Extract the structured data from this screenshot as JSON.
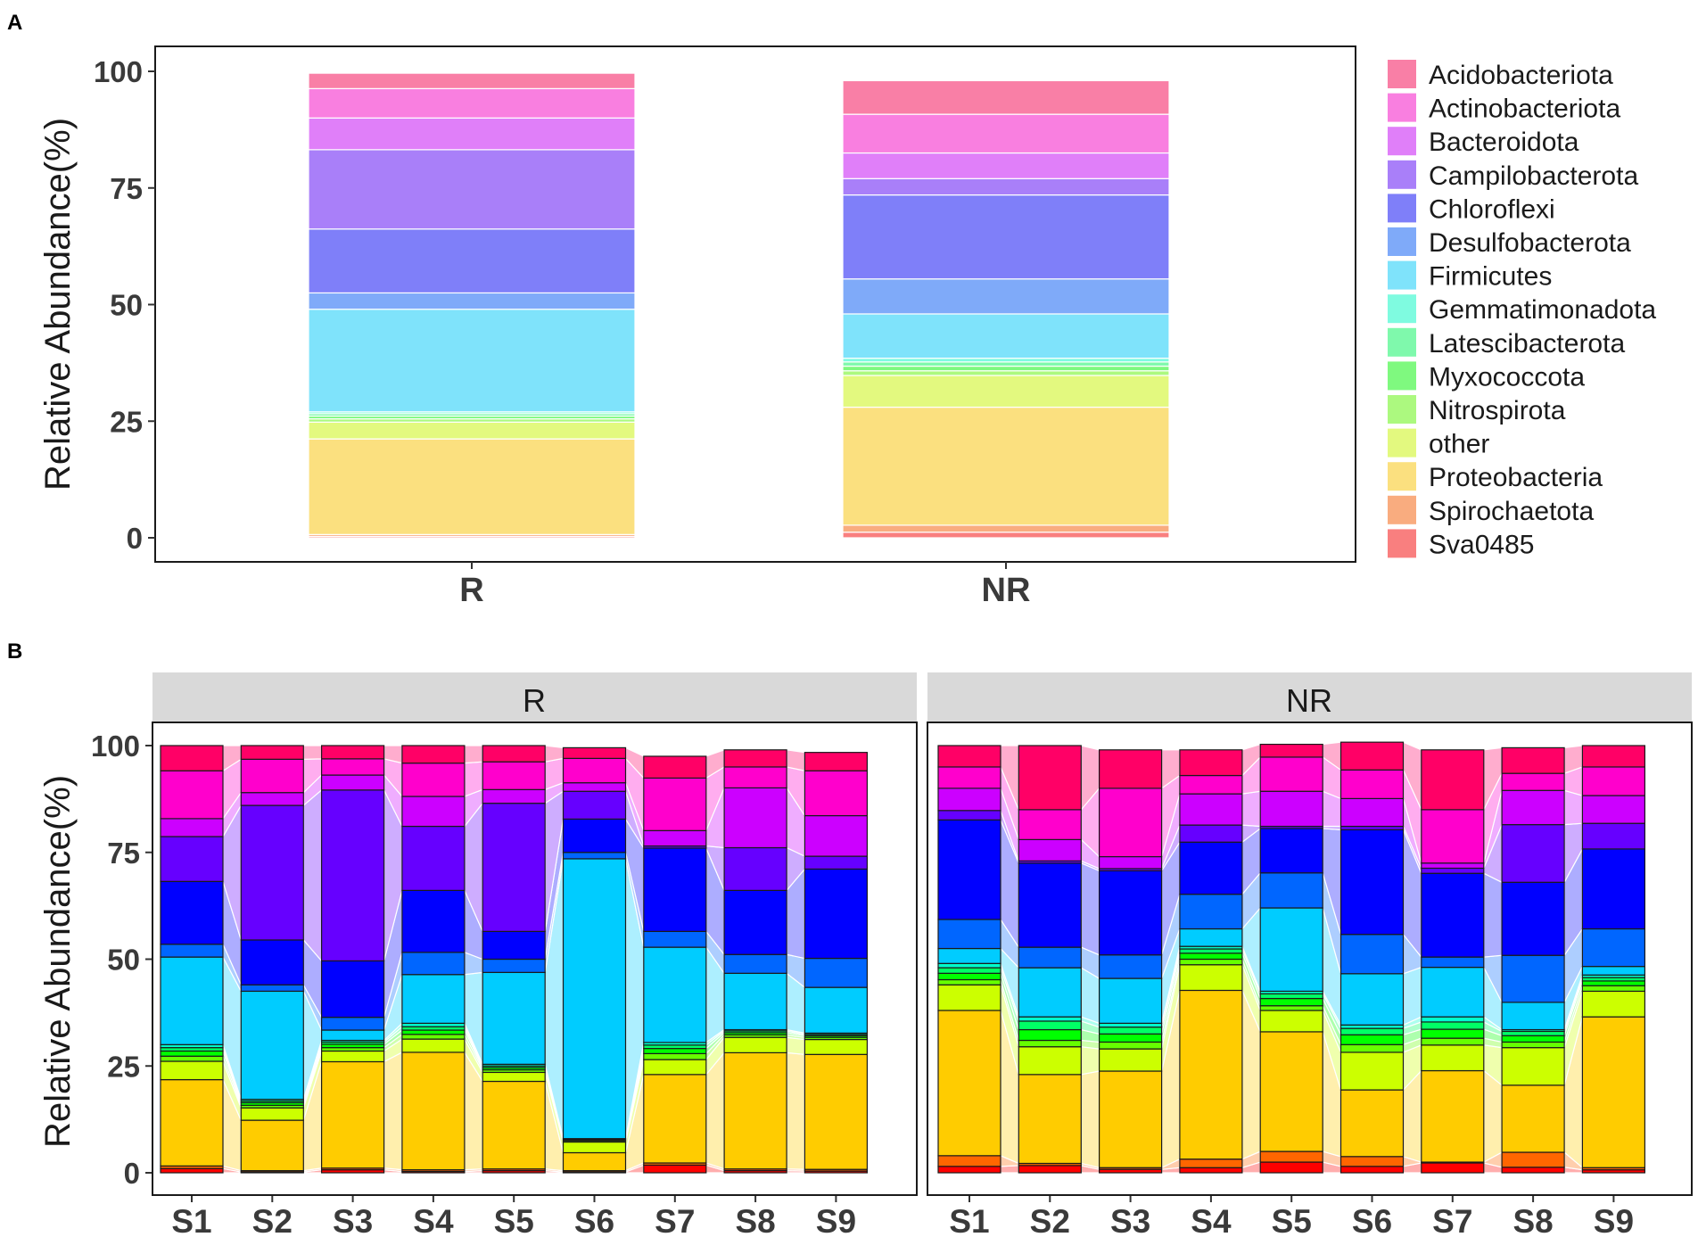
{
  "panels": {
    "a_label": "A",
    "b_label": "B"
  },
  "palette": {
    "Acidobacteriota": "#f97fa6",
    "Actinobacteriota": "#f97fe0",
    "Bacteroidota": "#e07ff9",
    "Campilobacterota": "#a97ff9",
    "Chloroflexi": "#7f7ff9",
    "Desulfobacterota": "#7faaf9",
    "Firmicutes": "#7fe3fb",
    "Gemmatimonadota": "#7ffbe0",
    "Latescibacterota": "#7ff9ac",
    "Myxococcota": "#7ff97f",
    "Nitrospirota": "#acf97f",
    "other": "#e3f97f",
    "Proteobacteria": "#fbe07f",
    "Spirochaetota": "#f9ac7f",
    "Sva0485": "#f97f7f"
  },
  "palette_b": {
    "Acidobacteriota": "#ff0066",
    "Actinobacteriota": "#ff00cc",
    "Bacteroidota": "#cc00ff",
    "Campilobacterota": "#6600ff",
    "Chloroflexi": "#0000ff",
    "Desulfobacterota": "#0066ff",
    "Firmicutes": "#00ccff",
    "Gemmatimonadota": "#00ffcc",
    "Latescibacterota": "#00ff66",
    "Myxococcota": "#00ff00",
    "Nitrospirota": "#66ff00",
    "other": "#ccff00",
    "Proteobacteria": "#ffcc00",
    "Spirochaetota": "#ff6600",
    "Sva0485": "#ff0000"
  },
  "chart_data": [
    {
      "id": "A",
      "type": "bar",
      "stacked": true,
      "ylabel": "Relative Abundance(%)",
      "xlabel": "",
      "ylim": [
        0,
        100
      ],
      "yticks": [
        0,
        25,
        50,
        75,
        100
      ],
      "categories": [
        "R",
        "NR"
      ],
      "legend_position": "right",
      "legend": [
        "Acidobacteriota",
        "Actinobacteriota",
        "Bacteroidota",
        "Campilobacterota",
        "Chloroflexi",
        "Desulfobacterota",
        "Firmicutes",
        "Gemmatimonadota",
        "Latescibacterota",
        "Myxococcota",
        "Nitrospirota",
        "other",
        "Proteobacteria",
        "Spirochaetota",
        "Sva0485"
      ],
      "series": [
        {
          "name": "Sva0485",
          "values": [
            0.3,
            1.2
          ]
        },
        {
          "name": "Spirochaetota",
          "values": [
            0.4,
            1.5
          ]
        },
        {
          "name": "Proteobacteria",
          "values": [
            20.5,
            25.3
          ]
        },
        {
          "name": "other",
          "values": [
            3.6,
            6.8
          ]
        },
        {
          "name": "Nitrospirota",
          "values": [
            0.7,
            1.0
          ]
        },
        {
          "name": "Myxococcota",
          "values": [
            0.6,
            1.0
          ]
        },
        {
          "name": "Latescibacterota",
          "values": [
            0.5,
            0.9
          ]
        },
        {
          "name": "Gemmatimonadota",
          "values": [
            0.4,
            0.8
          ]
        },
        {
          "name": "Firmicutes",
          "values": [
            22.0,
            9.5
          ]
        },
        {
          "name": "Desulfobacterota",
          "values": [
            3.5,
            7.5
          ]
        },
        {
          "name": "Chloroflexi",
          "values": [
            13.7,
            18.0
          ]
        },
        {
          "name": "Campilobacterota",
          "values": [
            17.0,
            3.5
          ]
        },
        {
          "name": "Bacteroidota",
          "values": [
            6.8,
            5.5
          ]
        },
        {
          "name": "Actinobacteriota",
          "values": [
            6.3,
            8.3
          ]
        },
        {
          "name": "Acidobacteriota",
          "values": [
            3.3,
            7.2
          ]
        }
      ]
    },
    {
      "id": "B",
      "type": "bar",
      "stacked": true,
      "ylabel": "Relative Abundance(%)",
      "xlabel": "",
      "ylim": [
        0,
        100
      ],
      "yticks": [
        0,
        25,
        50,
        75,
        100
      ],
      "categories": [
        "S1",
        "S2",
        "S3",
        "S4",
        "S5",
        "S6",
        "S7",
        "S8",
        "S9"
      ],
      "facets": [
        "R",
        "NR"
      ],
      "series_order": [
        "Sva0485",
        "Spirochaetota",
        "Proteobacteria",
        "other",
        "Nitrospirota",
        "Myxococcota",
        "Latescibacterota",
        "Gemmatimonadota",
        "Firmicutes",
        "Desulfobacterota",
        "Chloroflexi",
        "Campilobacterota",
        "Bacteroidota",
        "Actinobacteriota",
        "Acidobacteriota"
      ],
      "facet_data": {
        "R": {
          "Sva0485": [
            1.0,
            0.2,
            0.7,
            0.3,
            0.5,
            0.2,
            1.8,
            0.5,
            0.4
          ],
          "Spirochaetota": [
            0.6,
            0.3,
            0.4,
            0.4,
            0.4,
            0.3,
            0.5,
            0.4,
            0.4
          ],
          "Proteobacteria": [
            20.2,
            11.8,
            24.9,
            27.5,
            20.5,
            4.2,
            20.7,
            27.2,
            26.9
          ],
          "other": [
            4.3,
            2.9,
            2.5,
            3.1,
            2.1,
            2.5,
            3.5,
            3.6,
            3.5
          ],
          "Nitrospirota": [
            1.2,
            0.6,
            0.8,
            1.1,
            0.6,
            0.3,
            1.4,
            0.6,
            0.5
          ],
          "Myxococcota": [
            1.2,
            0.6,
            0.8,
            1.0,
            0.5,
            0.2,
            1.2,
            0.5,
            0.4
          ],
          "Latescibacterota": [
            0.8,
            0.4,
            0.5,
            0.8,
            0.4,
            0.2,
            0.8,
            0.4,
            0.3
          ],
          "Gemmatimonadota": [
            0.7,
            0.4,
            0.4,
            0.8,
            0.4,
            0.1,
            0.6,
            0.3,
            0.3
          ],
          "Firmicutes": [
            20.5,
            25.3,
            2.4,
            11.4,
            21.5,
            65.5,
            22.3,
            13.2,
            10.7
          ],
          "Desulfobacterota": [
            3.0,
            1.5,
            3.0,
            5.2,
            3.1,
            1.5,
            3.7,
            4.4,
            6.8
          ],
          "Chloroflexi": [
            14.7,
            10.5,
            13.2,
            14.5,
            6.5,
            7.8,
            19.5,
            15.0,
            20.9
          ],
          "Campilobacterota": [
            10.5,
            31.5,
            40.0,
            15.0,
            30.0,
            6.5,
            0.5,
            10.0,
            3.0
          ],
          "Bacteroidota": [
            4.2,
            3.0,
            3.5,
            7.0,
            3.2,
            2.0,
            3.6,
            14.0,
            9.5
          ],
          "Actinobacteriota": [
            11.2,
            7.8,
            3.8,
            7.8,
            6.5,
            5.7,
            12.3,
            4.9,
            10.5
          ],
          "Acidobacteriota": [
            5.9,
            3.2,
            3.1,
            4.1,
            3.8,
            2.5,
            5.1,
            4.0,
            4.3
          ]
        },
        "NR": {
          "Sva0485": [
            1.5,
            1.7,
            0.8,
            1.2,
            2.5,
            1.5,
            2.3,
            1.3,
            0.7
          ],
          "Spirochaetota": [
            2.5,
            0.5,
            0.4,
            2.0,
            2.5,
            2.3,
            0.2,
            3.5,
            0.5
          ],
          "Proteobacteria": [
            34.0,
            20.8,
            22.6,
            39.5,
            28.0,
            15.6,
            21.4,
            15.7,
            35.3
          ],
          "other": [
            6.0,
            6.5,
            5.2,
            6.0,
            5.0,
            8.8,
            6.0,
            8.8,
            6.0
          ],
          "Nitrospirota": [
            1.2,
            1.5,
            1.6,
            1.3,
            1.1,
            1.8,
            1.6,
            1.3,
            1.3
          ],
          "Myxococcota": [
            1.5,
            2.5,
            1.9,
            1.4,
            1.7,
            2.3,
            2.1,
            1.5,
            1.1
          ],
          "Latescibacterota": [
            1.3,
            2.0,
            1.6,
            1.0,
            1.1,
            1.5,
            1.7,
            1.0,
            0.8
          ],
          "Gemmatimonadota": [
            1.0,
            1.0,
            0.9,
            0.6,
            0.6,
            0.8,
            1.2,
            0.4,
            0.6
          ],
          "Firmicutes": [
            3.5,
            11.5,
            10.5,
            4.1,
            19.5,
            12.0,
            11.6,
            6.4,
            2.0
          ],
          "Desulfobacterota": [
            6.8,
            4.8,
            5.5,
            8.1,
            8.2,
            9.2,
            2.4,
            11.0,
            8.8
          ],
          "Chloroflexi": [
            23.3,
            19.7,
            19.7,
            12.2,
            10.4,
            24.5,
            19.6,
            17.1,
            18.7
          ],
          "Campilobacterota": [
            2.2,
            0.5,
            0.5,
            4.0,
            0.5,
            0.8,
            1.2,
            13.5,
            6.0
          ],
          "Bacteroidota": [
            5.2,
            5.0,
            2.8,
            7.3,
            8.2,
            6.5,
            1.2,
            8.0,
            6.5
          ],
          "Actinobacteriota": [
            5.0,
            7.0,
            16.0,
            4.3,
            8.0,
            6.7,
            12.5,
            4.0,
            6.7
          ],
          "Acidobacteriota": [
            5.0,
            15.0,
            9.0,
            6.0,
            3.0,
            6.5,
            14.0,
            6.0,
            5.0
          ]
        }
      }
    }
  ]
}
